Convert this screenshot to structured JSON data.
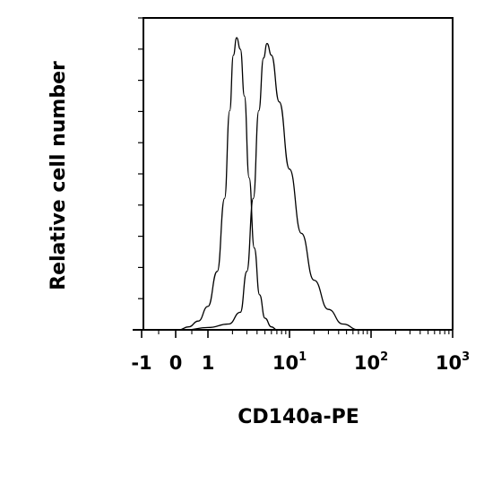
{
  "chart_data": {
    "type": "line",
    "title": "",
    "xlabel": "CD140a-PE",
    "ylabel": "Relative cell number",
    "x_scale": "biexponential",
    "x_ticks": [
      {
        "value": -1,
        "base": "-1",
        "exp": ""
      },
      {
        "value": 0,
        "base": "0",
        "exp": ""
      },
      {
        "value": 1,
        "base": "1",
        "exp": ""
      },
      {
        "value": 10,
        "base": "10",
        "exp": "1"
      },
      {
        "value": 100,
        "base": "10",
        "exp": "2"
      },
      {
        "value": 1000,
        "base": "10",
        "exp": "3"
      }
    ],
    "xlim": [
      -1,
      1000
    ],
    "ylim": [
      0,
      100
    ],
    "grid": false,
    "series": [
      {
        "values": [
          [
            0.1,
            0
          ],
          [
            0.4,
            1
          ],
          [
            0.7,
            3
          ],
          [
            1.0,
            8
          ],
          [
            1.3,
            20
          ],
          [
            1.6,
            45
          ],
          [
            1.85,
            75
          ],
          [
            2.05,
            94
          ],
          [
            2.25,
            100
          ],
          [
            2.5,
            96
          ],
          [
            2.8,
            80
          ],
          [
            3.2,
            52
          ],
          [
            3.7,
            28
          ],
          [
            4.3,
            12
          ],
          [
            5.0,
            4
          ],
          [
            6.0,
            1
          ],
          [
            7.0,
            0
          ]
        ]
      },
      {
        "values": [
          [
            0.3,
            0
          ],
          [
            1.0,
            0.8
          ],
          [
            1.8,
            2
          ],
          [
            2.5,
            6
          ],
          [
            3.0,
            20
          ],
          [
            3.6,
            45
          ],
          [
            4.2,
            75
          ],
          [
            4.8,
            93
          ],
          [
            5.3,
            98
          ],
          [
            6.0,
            94
          ],
          [
            7.5,
            78
          ],
          [
            10,
            55
          ],
          [
            14,
            33
          ],
          [
            20,
            17
          ],
          [
            30,
            7
          ],
          [
            45,
            2
          ],
          [
            70,
            0
          ]
        ]
      }
    ]
  }
}
